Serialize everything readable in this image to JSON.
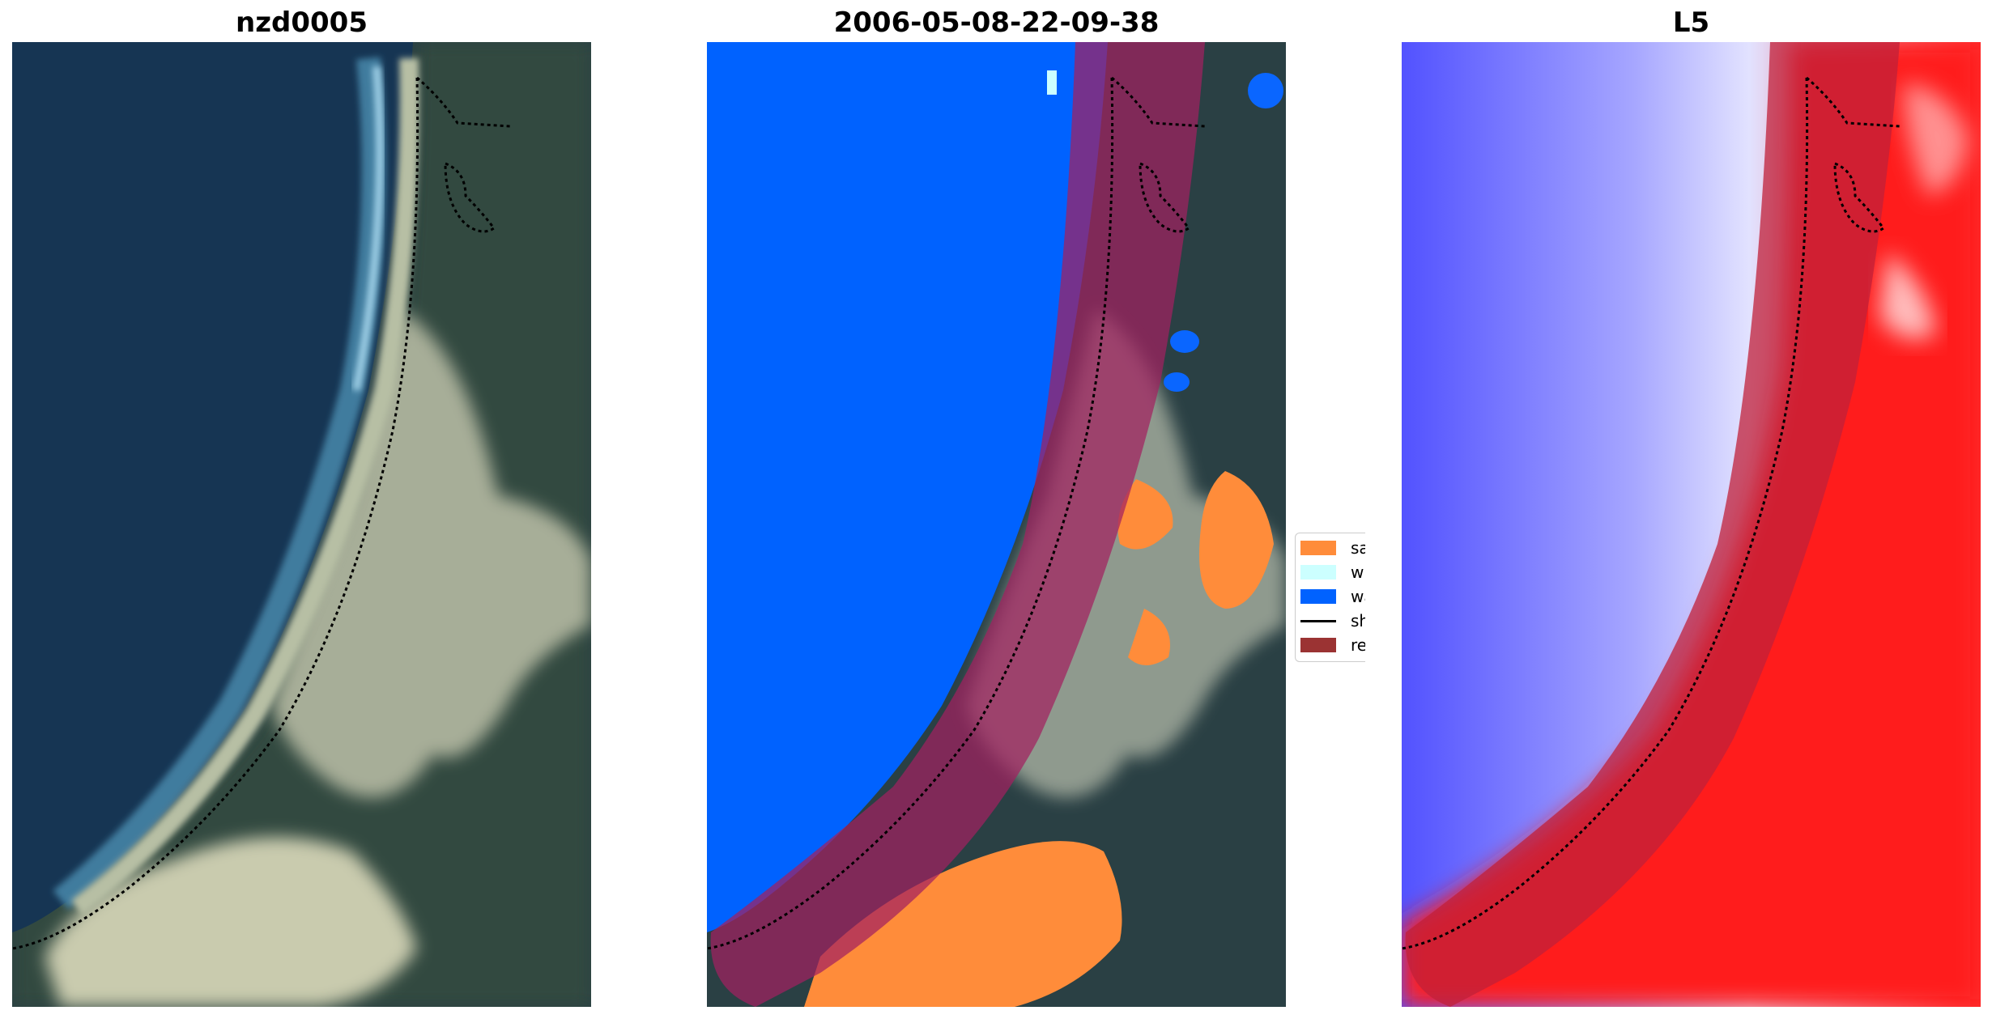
{
  "panels": [
    {
      "title": "nzd0005"
    },
    {
      "title": "2006-05-08-22-09-38"
    },
    {
      "title": "L5"
    }
  ],
  "legend": {
    "items": [
      {
        "label": "sand",
        "color": "#ff8c3a",
        "kind": "patch"
      },
      {
        "label": "whitewater",
        "color": "#ccffff",
        "kind": "patch"
      },
      {
        "label": "water",
        "color": "#0062ff",
        "kind": "patch"
      },
      {
        "label": "shoreline",
        "color": "#000000",
        "kind": "line"
      },
      {
        "label": "reference shoreline buffer",
        "color": "#9b3333",
        "kind": "patch"
      }
    ]
  },
  "colors": {
    "ocean_deep": "#173a57",
    "land_dark": "#243a3c",
    "sand_beach": "#b9c2a8",
    "buffer_overlay": "#c0203a",
    "index_negative": "#3a3aff",
    "index_positive": "#ff1a1a"
  }
}
